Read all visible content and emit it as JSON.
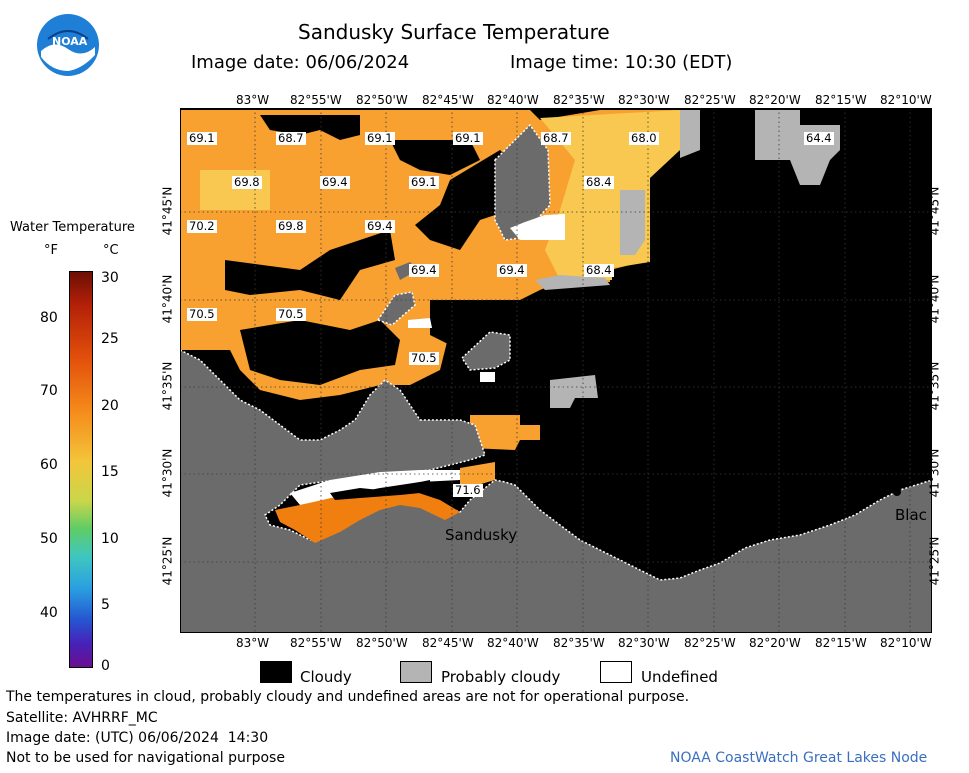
{
  "header": {
    "title": "Sandusky Surface Temperature",
    "image_date": "Image date: 06/06/2024",
    "image_time": "Image time: 10:30 (EDT)"
  },
  "logo": {
    "text": "NOAA"
  },
  "legend": {
    "title": "Water Temperature",
    "unit_f": "°F",
    "unit_c": "°C",
    "f_ticks": [
      "80",
      "70",
      "60",
      "50",
      "40"
    ],
    "c_ticks": [
      "30",
      "25",
      "20",
      "15",
      "10",
      "5",
      "0"
    ]
  },
  "axes": {
    "lon_top": [
      "83°W",
      "82°55'W",
      "82°50'W",
      "82°45'W",
      "82°40'W",
      "82°35'W",
      "82°30'W",
      "82°25'W",
      "82°20'W",
      "82°15'W",
      "82°10'W"
    ],
    "lon_bottom": [
      "83°W",
      "82°55'W",
      "82°50'W",
      "82°45'W",
      "82°40'W",
      "82°35'W",
      "82°30'W",
      "82°25'W",
      "82°20'W",
      "82°15'W",
      "82°10'W"
    ],
    "lat": [
      "41°45'N",
      "41°40'N",
      "41°35'N",
      "41°30'N",
      "41°25'N"
    ]
  },
  "temps": [
    "69.1",
    "68.7",
    "69.1",
    "69.1",
    "68.7",
    "68.0",
    "64.4",
    "69.8",
    "69.4",
    "69.1",
    "68.4",
    "70.2",
    "69.8",
    "69.4",
    "69.4",
    "69.4",
    "68.4",
    "70.5",
    "70.5",
    "70.5",
    "71.6"
  ],
  "places": {
    "sandusky": "Sandusky",
    "black": "Blac"
  },
  "key": {
    "cloudy": "Cloudy",
    "probably_cloudy": "Probably cloudy",
    "undefined": "Undefined"
  },
  "footer": {
    "disclaimer": "The temperatures in cloud, probably cloudy and undefined areas are not for operational purpose.",
    "satellite": "Satellite: AVHRRF_MC",
    "utc_date": "Image date: (UTC) 06/06/2024  14:30",
    "navigation": "Not to be used for navigational purpose",
    "credit": "NOAA CoastWatch Great Lakes Node"
  },
  "colors": {
    "water_warm": "#f8a030",
    "water_cool": "#f8c850",
    "water_hot": "#f07f10",
    "cloudy": "#000000",
    "probably_cloudy": "#b4b4b4",
    "land": "#6b6b6b",
    "undefined": "#ffffff"
  }
}
